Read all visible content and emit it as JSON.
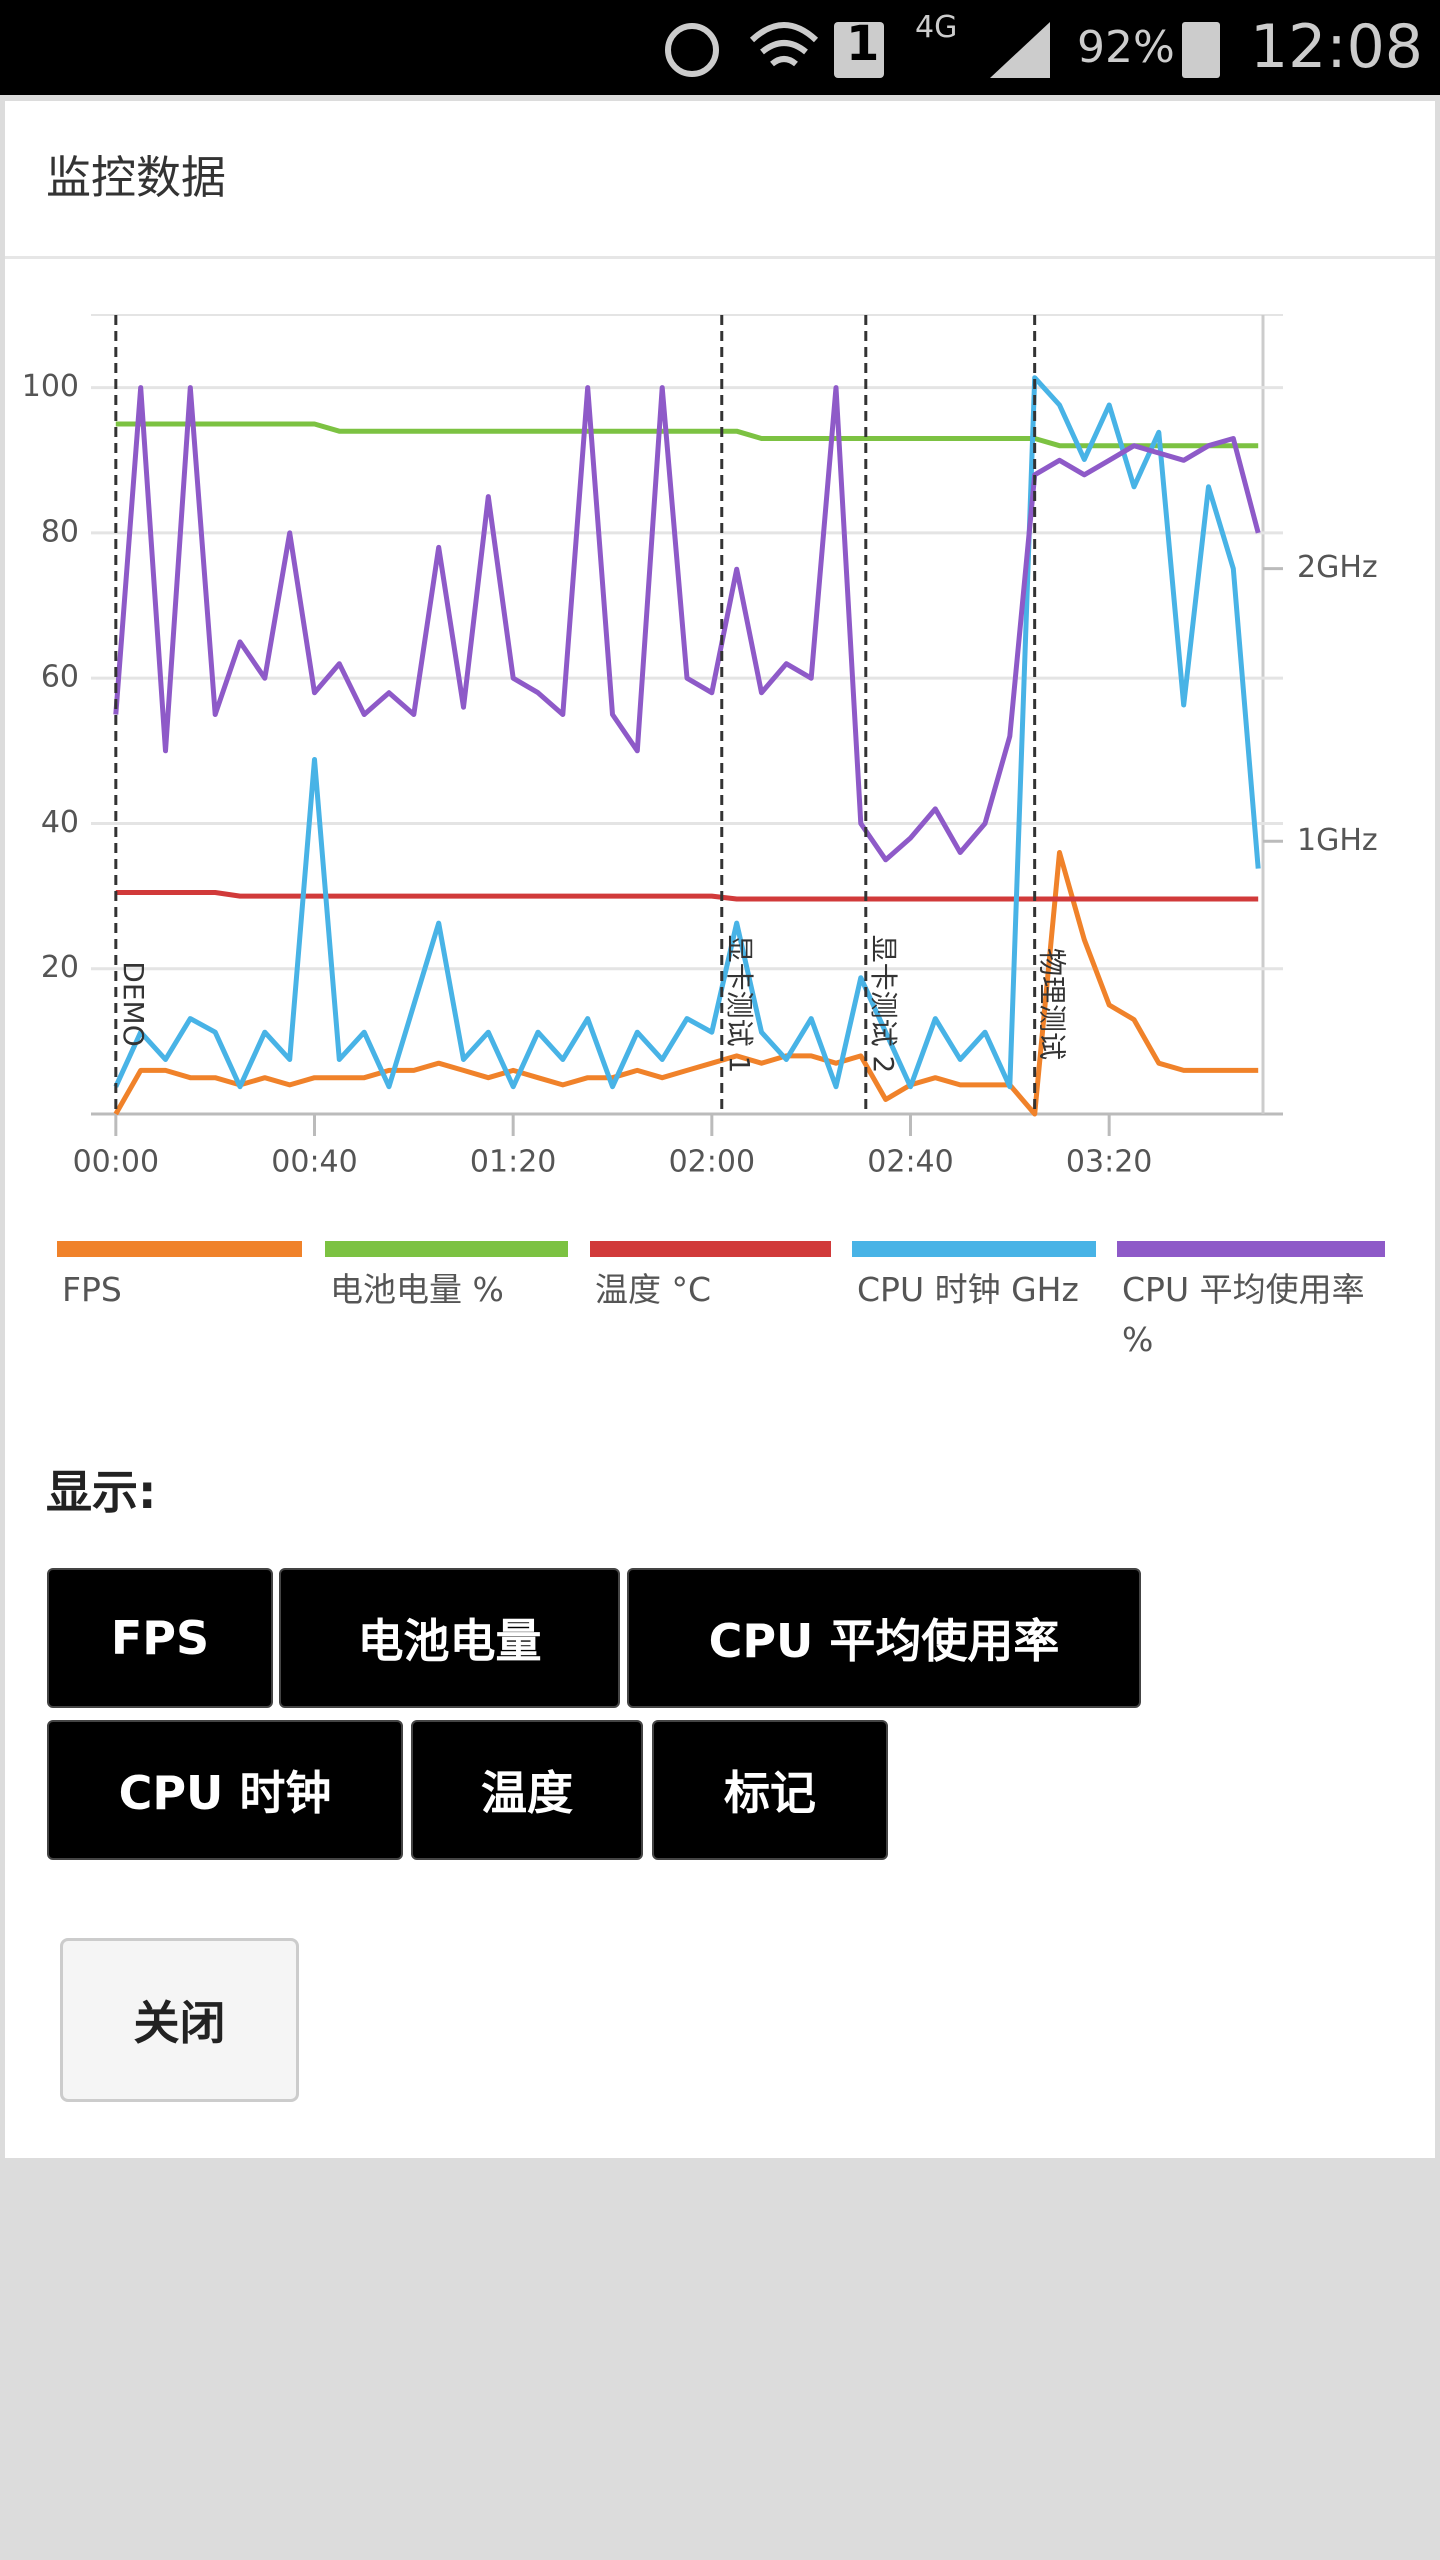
{
  "status_bar": {
    "sim": "1",
    "network": "4G",
    "battery": "92%",
    "time": "12:08"
  },
  "dialog": {
    "title": "监控数据"
  },
  "chart_data": {
    "type": "line",
    "x": [
      0,
      5,
      10,
      15,
      20,
      25,
      30,
      35,
      40,
      45,
      50,
      55,
      60,
      65,
      70,
      75,
      80,
      85,
      90,
      95,
      100,
      105,
      110,
      115,
      120,
      125,
      130,
      135,
      140,
      145,
      150,
      155,
      160,
      165,
      170,
      175,
      180,
      185,
      190,
      195,
      200,
      205,
      210,
      215,
      220,
      225,
      230
    ],
    "xlim": [
      -5,
      235
    ],
    "xticks": [
      {
        "value": 0,
        "label": "00:00"
      },
      {
        "value": 40,
        "label": "00:40"
      },
      {
        "value": 80,
        "label": "01:20"
      },
      {
        "value": 120,
        "label": "02:00"
      },
      {
        "value": 160,
        "label": "02:40"
      },
      {
        "value": 200,
        "label": "03:20"
      }
    ],
    "ylim": [
      0,
      110
    ],
    "yticks": [
      20,
      40,
      60,
      80,
      100
    ],
    "y2lim": [
      0,
      2.93
    ],
    "y2ticks": [
      {
        "value": 1,
        "label": "1GHz"
      },
      {
        "value": 2,
        "label": "2GHz"
      }
    ],
    "grid": true,
    "series": [
      {
        "name": "FPS",
        "color": "#f0822a",
        "values": [
          0,
          6,
          6,
          5,
          5,
          4,
          5,
          4,
          5,
          5,
          5,
          6,
          6,
          7,
          6,
          5,
          6,
          5,
          4,
          5,
          5,
          6,
          5,
          6,
          7,
          8,
          7,
          8,
          8,
          7,
          8,
          2,
          4,
          5,
          4,
          4,
          4,
          0,
          36,
          24,
          15,
          13,
          7,
          6,
          6,
          6,
          6
        ]
      },
      {
        "name": "电池电量 %",
        "color": "#7cc242",
        "values": [
          95,
          95,
          95,
          95,
          95,
          95,
          95,
          95,
          95,
          94,
          94,
          94,
          94,
          94,
          94,
          94,
          94,
          94,
          94,
          94,
          94,
          94,
          94,
          94,
          94,
          94,
          93,
          93,
          93,
          93,
          93,
          93,
          93,
          93,
          93,
          93,
          93,
          93,
          92,
          92,
          92,
          92,
          92,
          92,
          92,
          92,
          92
        ]
      },
      {
        "name": "温度 °C",
        "color": "#d13a3a",
        "values": [
          30.5,
          30.5,
          30.5,
          30.5,
          30.5,
          30,
          30,
          30,
          30,
          30,
          30,
          30,
          30,
          30,
          30,
          30,
          30,
          30,
          30,
          30,
          30,
          30,
          30,
          30,
          30,
          29.6,
          29.6,
          29.6,
          29.6,
          29.6,
          29.6,
          29.6,
          29.6,
          29.6,
          29.6,
          29.6,
          29.6,
          29.6,
          29.6,
          29.6,
          29.6,
          29.6,
          29.6,
          29.6,
          29.6,
          29.6,
          29.6
        ]
      },
      {
        "name": "CPU 时钟 GHz",
        "color": "#48b3e6",
        "axis": "y2",
        "values": [
          0.1,
          0.3,
          0.2,
          0.35,
          0.3,
          0.1,
          0.3,
          0.2,
          1.3,
          0.2,
          0.3,
          0.1,
          0.4,
          0.7,
          0.2,
          0.3,
          0.1,
          0.3,
          0.2,
          0.35,
          0.1,
          0.3,
          0.2,
          0.35,
          0.3,
          0.7,
          0.3,
          0.2,
          0.35,
          0.1,
          0.5,
          0.3,
          0.1,
          0.35,
          0.2,
          0.3,
          0.1,
          2.7,
          2.6,
          2.4,
          2.6,
          2.3,
          2.5,
          1.5,
          2.3,
          2.0,
          0.9
        ]
      },
      {
        "name": "CPU 平均使用率 %",
        "color": "#8e5ac8",
        "values": [
          55,
          100,
          50,
          100,
          55,
          65,
          60,
          80,
          58,
          62,
          55,
          58,
          55,
          78,
          56,
          85,
          60,
          58,
          55,
          100,
          55,
          50,
          100,
          60,
          58,
          75,
          58,
          62,
          60,
          100,
          40,
          35,
          38,
          42,
          36,
          40,
          52,
          88,
          90,
          88,
          90,
          92,
          91,
          90,
          92,
          93,
          80
        ]
      }
    ],
    "markers": [
      {
        "x": 0,
        "label": "DEMO"
      },
      {
        "x": 122,
        "label": "显卡测试 1"
      },
      {
        "x": 151,
        "label": "显卡测试 2"
      },
      {
        "x": 185,
        "label": "物理测试"
      }
    ]
  },
  "display": {
    "label": "显示:",
    "buttons": [
      "FPS",
      "电池电量",
      "CPU 平均使用率",
      "CPU 时钟",
      "温度",
      "标记"
    ]
  },
  "close_button": "关闭"
}
